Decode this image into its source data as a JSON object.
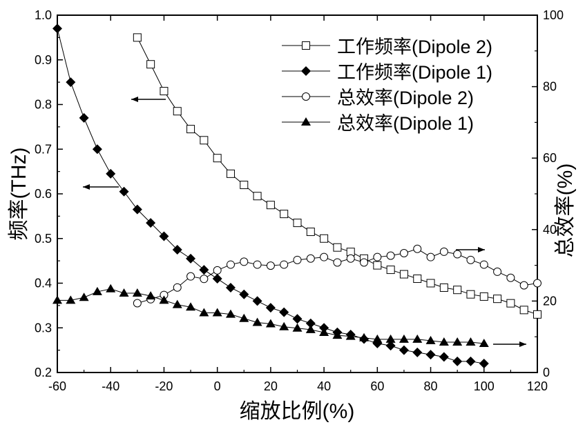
{
  "chart_data": {
    "type": "line",
    "xlabel": "缩放比例(%)",
    "ylabel_left": "频率(THz)",
    "ylabel_right": "总效率(%)",
    "xlim": [
      -60,
      120
    ],
    "ylim_left": [
      0.2,
      1.0
    ],
    "ylim_right": [
      0,
      100
    ],
    "x_ticks": [
      "-60",
      "-40",
      "-20",
      "0",
      "20",
      "40",
      "60",
      "80",
      "100",
      "120"
    ],
    "y_ticks_left": [
      "0.2",
      "0.3",
      "0.4",
      "0.5",
      "0.6",
      "0.7",
      "0.8",
      "0.9",
      "1.0"
    ],
    "y_ticks_right": [
      "0",
      "20",
      "40",
      "60",
      "80",
      "100"
    ],
    "grid": false,
    "legend_position": "top-right",
    "series": [
      {
        "name": "工作频率(Dipole 2)",
        "axis": "left",
        "marker": "open-square",
        "x": [
          -30,
          -25,
          -20,
          -15,
          -10,
          -5,
          0,
          5,
          10,
          15,
          20,
          25,
          30,
          35,
          40,
          45,
          50,
          55,
          60,
          65,
          70,
          75,
          80,
          85,
          90,
          95,
          100,
          105,
          110,
          115,
          120
        ],
        "y": [
          0.95,
          0.89,
          0.83,
          0.785,
          0.745,
          0.72,
          0.68,
          0.645,
          0.62,
          0.595,
          0.575,
          0.555,
          0.535,
          0.515,
          0.5,
          0.48,
          0.47,
          0.455,
          0.44,
          0.43,
          0.42,
          0.41,
          0.4,
          0.39,
          0.385,
          0.375,
          0.37,
          0.365,
          0.355,
          0.34,
          0.33
        ]
      },
      {
        "name": "工作频率(Dipole 1)",
        "axis": "left",
        "marker": "filled-diamond",
        "x": [
          -60,
          -55,
          -50,
          -45,
          -40,
          -35,
          -30,
          -25,
          -20,
          -15,
          -10,
          -5,
          0,
          5,
          10,
          15,
          20,
          25,
          30,
          35,
          40,
          45,
          50,
          55,
          60,
          65,
          70,
          75,
          80,
          85,
          90,
          95,
          100
        ],
        "y": [
          0.97,
          0.85,
          0.77,
          0.7,
          0.645,
          0.605,
          0.565,
          0.535,
          0.505,
          0.475,
          0.455,
          0.43,
          0.41,
          0.39,
          0.375,
          0.36,
          0.345,
          0.335,
          0.32,
          0.31,
          0.3,
          0.29,
          0.285,
          0.275,
          0.265,
          0.26,
          0.25,
          0.245,
          0.24,
          0.235,
          0.225,
          0.225,
          0.22
        ]
      },
      {
        "name": "总效率(Dipole 2)",
        "axis": "right",
        "marker": "open-circle",
        "x": [
          -30,
          -25,
          -20,
          -15,
          -10,
          -5,
          0,
          5,
          10,
          15,
          20,
          25,
          30,
          35,
          40,
          45,
          50,
          55,
          60,
          65,
          70,
          75,
          80,
          85,
          90,
          95,
          100,
          105,
          110,
          115,
          120
        ],
        "y": [
          19.4,
          20.5,
          21.7,
          23.8,
          26.9,
          26.2,
          28.6,
          30.2,
          31.0,
          30.2,
          29.9,
          30.2,
          31.5,
          31.9,
          32.3,
          30.8,
          31.9,
          30.8,
          32.3,
          32.7,
          33.4,
          34.6,
          32.3,
          33.8,
          33.1,
          31.5,
          30.2,
          28.2,
          26.5,
          24.4,
          25.0
        ]
      },
      {
        "name": "总效率(Dipole 1)",
        "axis": "right",
        "marker": "filled-triangle",
        "x": [
          -60,
          -55,
          -50,
          -45,
          -40,
          -35,
          -30,
          -25,
          -20,
          -15,
          -10,
          -5,
          0,
          5,
          10,
          15,
          20,
          25,
          30,
          35,
          40,
          45,
          50,
          55,
          60,
          65,
          70,
          75,
          80,
          85,
          90,
          95,
          100
        ],
        "y": [
          20.2,
          20.2,
          21.0,
          22.6,
          23.4,
          22.2,
          22.2,
          21.4,
          20.2,
          19.0,
          18.3,
          16.7,
          16.7,
          16.3,
          15.1,
          14.0,
          13.6,
          12.8,
          12.4,
          12.0,
          11.2,
          10.4,
          10.1,
          9.7,
          9.3,
          9.3,
          9.3,
          9.3,
          8.9,
          8.5,
          8.5,
          8.5,
          8.1
        ]
      }
    ]
  }
}
